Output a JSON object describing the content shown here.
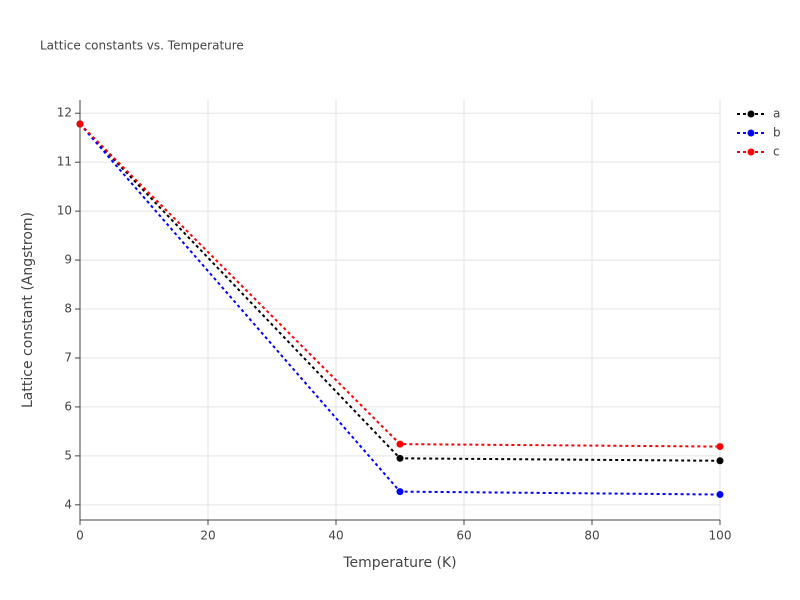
{
  "chart_data": {
    "type": "line",
    "title": "Lattice constants vs. Temperature",
    "x_label": "Temperature (K)",
    "y_label": "Lattice constant (Angstrom)",
    "x": [
      0,
      50,
      100
    ],
    "series": [
      {
        "name": "a",
        "color": "#000000",
        "values": [
          11.78,
          4.95,
          4.9
        ]
      },
      {
        "name": "b",
        "color": "#0000ff",
        "values": [
          11.78,
          4.27,
          4.21
        ]
      },
      {
        "name": "c",
        "color": "#ff0000",
        "values": [
          11.78,
          5.24,
          5.19
        ]
      }
    ],
    "xlim": [
      0,
      100
    ],
    "xticks": [
      0,
      20,
      40,
      60,
      80,
      100
    ],
    "ylim": [
      3.69,
      12.27
    ],
    "yticks": [
      4,
      5,
      6,
      7,
      8,
      9,
      10,
      11,
      12
    ],
    "grid": true,
    "legend": "top-right",
    "line_style": "dotted"
  }
}
